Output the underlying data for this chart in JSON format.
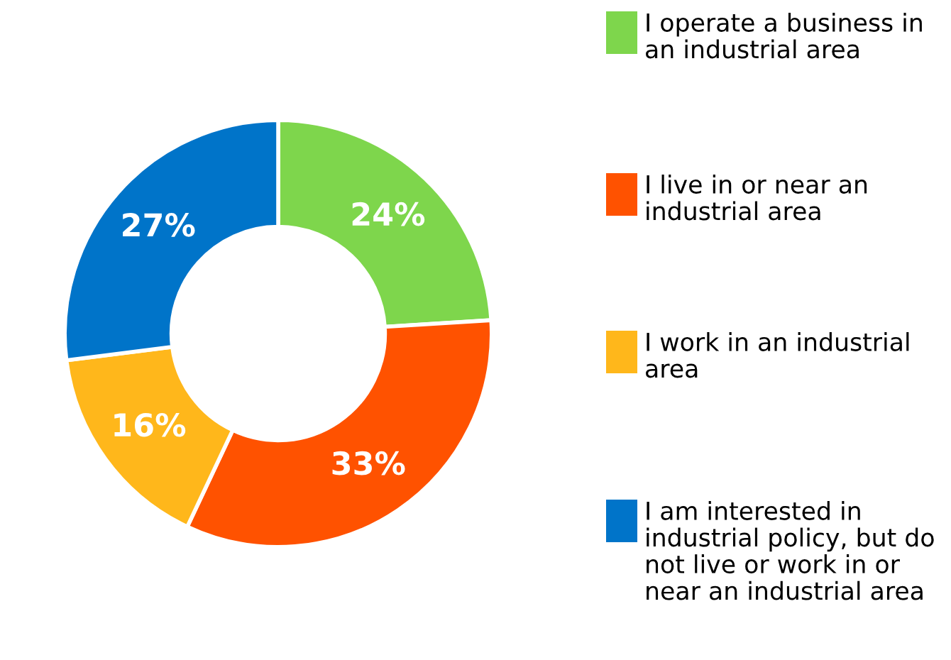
{
  "chart_data": {
    "type": "donut",
    "categories": [
      "I operate a business in an industrial area",
      "I live in or near an industrial area",
      "I work in an industrial area",
      "I am interested in industrial policy, but do not live or work in or near an industrial area"
    ],
    "values": [
      24,
      33,
      16,
      27
    ],
    "colors": [
      "#7ed64c",
      "#ff5200",
      "#ffb71b",
      "#0074c9"
    ],
    "value_labels": [
      "24%",
      "33%",
      "16%",
      "27%"
    ],
    "legend": "right"
  }
}
